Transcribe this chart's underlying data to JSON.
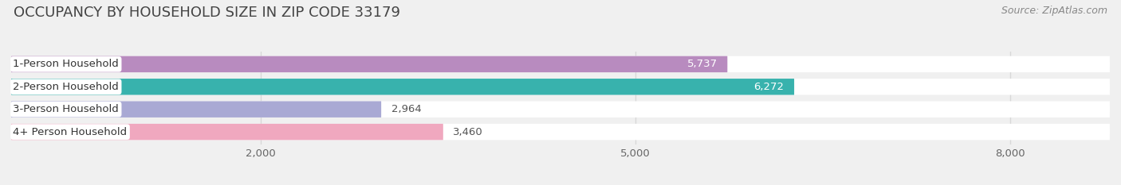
{
  "title": "OCCUPANCY BY HOUSEHOLD SIZE IN ZIP CODE 33179",
  "source": "Source: ZipAtlas.com",
  "categories": [
    "1-Person Household",
    "2-Person Household",
    "3-Person Household",
    "4+ Person Household"
  ],
  "values": [
    5737,
    6272,
    2964,
    3460
  ],
  "bar_colors": [
    "#b88bbf",
    "#38b2ad",
    "#a9a9d4",
    "#f0a8bf"
  ],
  "label_colors": [
    "white",
    "white",
    "#555555",
    "#555555"
  ],
  "xlim_max": 8800,
  "xticks": [
    2000,
    5000,
    8000
  ],
  "xtick_labels": [
    "2,000",
    "5,000",
    "8,000"
  ],
  "bg_color": "#f0f0f0",
  "bar_bg_color": "#e8e8e8",
  "row_bg_color": "#ffffff",
  "title_fontsize": 13,
  "label_fontsize": 9.5,
  "value_fontsize": 9.5,
  "source_fontsize": 9
}
